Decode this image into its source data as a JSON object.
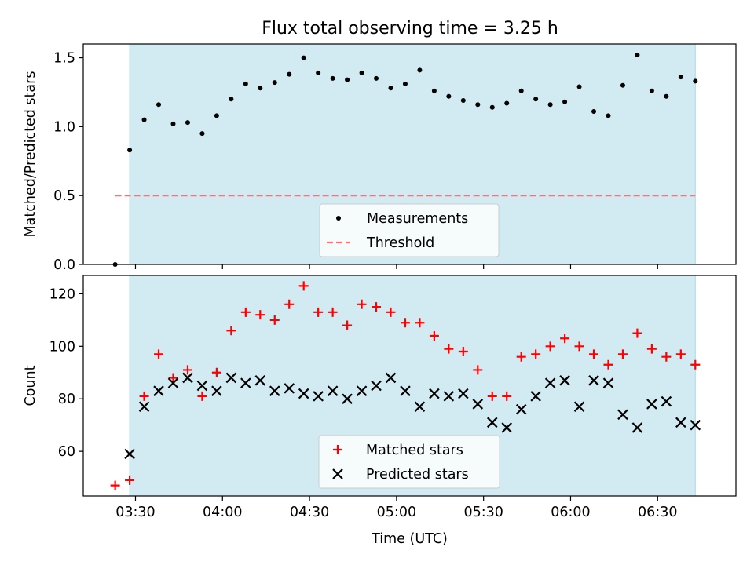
{
  "figure": {
    "title": "Flux total observing time = 3.25 h"
  },
  "chart_data": [
    {
      "type": "scatter",
      "panel": "top",
      "title": "Flux total observing time = 3.25 h",
      "xlabel": "",
      "ylabel": "Matched/Predicted stars",
      "ylim": [
        0.0,
        1.6
      ],
      "yticks": [
        0.0,
        0.5,
        1.0,
        1.5
      ],
      "ytick_labels": [
        "0.0",
        "0.5",
        "1.0",
        "1.5"
      ],
      "x_is_time_utc": true,
      "xlim": [
        "03:12",
        "06:57"
      ],
      "observing_window": [
        "03:28",
        "06:43"
      ],
      "observing_window_color": "#add8e6",
      "series": [
        {
          "name": "Measurements",
          "marker": "dot",
          "color": "#000000",
          "x": [
            "03:23",
            "03:28",
            "03:33",
            "03:38",
            "03:43",
            "03:48",
            "03:53",
            "03:58",
            "04:03",
            "04:08",
            "04:13",
            "04:18",
            "04:23",
            "04:28",
            "04:33",
            "04:38",
            "04:43",
            "04:48",
            "04:53",
            "04:58",
            "05:03",
            "05:08",
            "05:13",
            "05:18",
            "05:23",
            "05:28",
            "05:33",
            "05:38",
            "05:43",
            "05:48",
            "05:53",
            "05:58",
            "06:03",
            "06:08",
            "06:13",
            "06:18",
            "06:23",
            "06:28",
            "06:33",
            "06:38",
            "06:43"
          ],
          "y": [
            0.0,
            0.83,
            1.05,
            1.16,
            1.02,
            1.03,
            0.95,
            1.08,
            1.2,
            1.31,
            1.28,
            1.32,
            1.38,
            1.5,
            1.39,
            1.35,
            1.34,
            1.39,
            1.35,
            1.28,
            1.31,
            1.41,
            1.26,
            1.22,
            1.19,
            1.16,
            1.14,
            1.17,
            1.26,
            1.2,
            1.16,
            1.18,
            1.29,
            1.11,
            1.08,
            1.3,
            1.52,
            1.26,
            1.22,
            1.36,
            1.33
          ]
        },
        {
          "name": "Threshold",
          "marker": "dashed-line",
          "color": "#ff7070",
          "x": [
            "03:23",
            "06:43"
          ],
          "y": [
            0.5,
            0.5
          ]
        }
      ],
      "legend": {
        "location": "lower center",
        "entries": [
          "Measurements",
          "Threshold"
        ]
      }
    },
    {
      "type": "scatter",
      "panel": "bottom",
      "xlabel": "Time (UTC)",
      "ylabel": "Count",
      "ylim": [
        43,
        127
      ],
      "yticks": [
        60,
        80,
        100,
        120
      ],
      "ytick_labels": [
        "60",
        "80",
        "100",
        "120"
      ],
      "xlim": [
        "03:12",
        "06:57"
      ],
      "xticks": [
        "03:30",
        "04:00",
        "04:30",
        "05:00",
        "05:30",
        "06:00",
        "06:30"
      ],
      "xtick_labels": [
        "03:30",
        "04:00",
        "04:30",
        "05:00",
        "05:30",
        "06:00",
        "06:30"
      ],
      "observing_window": [
        "03:28",
        "06:43"
      ],
      "observing_window_color": "#add8e6",
      "series": [
        {
          "name": "Matched stars",
          "marker": "plus",
          "color": "#ff0000",
          "x": [
            "03:23",
            "03:28",
            "03:33",
            "03:38",
            "03:43",
            "03:48",
            "03:53",
            "03:58",
            "04:03",
            "04:08",
            "04:13",
            "04:18",
            "04:23",
            "04:28",
            "04:33",
            "04:38",
            "04:43",
            "04:48",
            "04:53",
            "04:58",
            "05:03",
            "05:08",
            "05:13",
            "05:18",
            "05:23",
            "05:28",
            "05:33",
            "05:38",
            "05:43",
            "05:48",
            "05:53",
            "05:58",
            "06:03",
            "06:08",
            "06:13",
            "06:18",
            "06:23",
            "06:28",
            "06:33",
            "06:38",
            "06:43"
          ],
          "y": [
            47,
            49,
            81,
            97,
            88,
            91,
            81,
            90,
            106,
            113,
            112,
            110,
            116,
            123,
            113,
            113,
            108,
            116,
            115,
            113,
            109,
            109,
            104,
            99,
            98,
            91,
            81,
            81,
            96,
            97,
            100,
            103,
            100,
            97,
            93,
            97,
            105,
            99,
            96,
            97,
            93
          ]
        },
        {
          "name": "Predicted stars",
          "marker": "x",
          "color": "#000000",
          "x": [
            "03:28",
            "03:33",
            "03:38",
            "03:43",
            "03:48",
            "03:53",
            "03:58",
            "04:03",
            "04:08",
            "04:13",
            "04:18",
            "04:23",
            "04:28",
            "04:33",
            "04:38",
            "04:43",
            "04:48",
            "04:53",
            "04:58",
            "05:03",
            "05:08",
            "05:13",
            "05:18",
            "05:23",
            "05:28",
            "05:33",
            "05:38",
            "05:43",
            "05:48",
            "05:53",
            "05:58",
            "06:03",
            "06:08",
            "06:13",
            "06:18",
            "06:23",
            "06:28",
            "06:33",
            "06:38",
            "06:43"
          ],
          "y": [
            59,
            77,
            83,
            86,
            88,
            85,
            83,
            88,
            86,
            87,
            83,
            84,
            82,
            81,
            83,
            80,
            83,
            85,
            88,
            83,
            77,
            82,
            81,
            82,
            78,
            71,
            69,
            76,
            81,
            86,
            87,
            77,
            87,
            86,
            74,
            69,
            78,
            79,
            71,
            70
          ]
        }
      ],
      "legend": {
        "location": "lower center",
        "entries": [
          "Matched stars",
          "Predicted stars"
        ]
      }
    }
  ]
}
